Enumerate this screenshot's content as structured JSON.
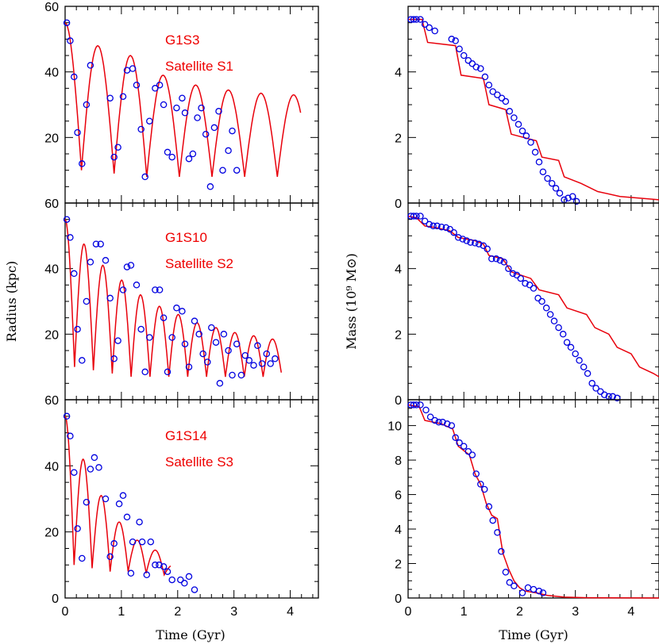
{
  "chart_data": [
    {
      "type": "line",
      "panel": "top-left",
      "annotation_line1": "G1S3",
      "annotation_line2": "Satellite S1",
      "xlim": [
        0,
        4.5
      ],
      "ylim": [
        0,
        60
      ],
      "x_ticks": [
        "0",
        "1",
        "2",
        "3",
        "4"
      ],
      "y_ticks": [
        "20",
        "40",
        "60"
      ],
      "model_curve": {
        "peaks": [
          55,
          48,
          45,
          39,
          36,
          34.5,
          33.5,
          33,
          33
        ],
        "troughs": [
          10,
          9,
          8,
          8,
          8,
          8,
          8,
          8,
          8
        ],
        "period": 0.58,
        "t_end": 4.2
      },
      "points": [
        [
          0.03,
          55
        ],
        [
          0.09,
          49.5
        ],
        [
          0.16,
          38.5
        ],
        [
          0.22,
          21.5
        ],
        [
          0.3,
          12
        ],
        [
          0.38,
          30
        ],
        [
          0.45,
          42
        ],
        [
          0.8,
          32
        ],
        [
          0.87,
          14
        ],
        [
          0.94,
          17
        ],
        [
          1.03,
          32.5
        ],
        [
          1.1,
          40.5
        ],
        [
          1.2,
          41
        ],
        [
          1.27,
          36
        ],
        [
          1.35,
          22.5
        ],
        [
          1.42,
          8
        ],
        [
          1.5,
          25
        ],
        [
          1.6,
          35
        ],
        [
          1.68,
          36
        ],
        [
          1.75,
          30
        ],
        [
          1.82,
          15.5
        ],
        [
          1.9,
          14
        ],
        [
          1.98,
          29
        ],
        [
          2.08,
          32
        ],
        [
          2.13,
          27.5
        ],
        [
          2.2,
          13.5
        ],
        [
          2.27,
          15
        ],
        [
          2.35,
          26
        ],
        [
          2.42,
          29
        ],
        [
          2.5,
          21
        ],
        [
          2.58,
          5
        ],
        [
          2.65,
          23
        ],
        [
          2.73,
          28
        ],
        [
          2.8,
          10
        ],
        [
          2.9,
          16
        ],
        [
          2.97,
          22
        ],
        [
          3.05,
          10
        ]
      ]
    },
    {
      "type": "line",
      "panel": "mid-left",
      "annotation_line1": "G1S10",
      "annotation_line2": "Satellite S2",
      "ylabel": "Radius (kpc)",
      "xlim": [
        0,
        4.5
      ],
      "ylim": [
        0,
        60
      ],
      "x_ticks": [
        "0",
        "1",
        "2",
        "3",
        "4"
      ],
      "y_ticks": [
        "20",
        "40",
        "60"
      ],
      "model_curve": {
        "peaks": [
          55,
          47.5,
          41,
          36.5,
          32,
          28.5,
          26,
          23.5,
          22,
          20.5,
          19.5,
          18.5
        ],
        "troughs": [
          10,
          9,
          8,
          7,
          7,
          7,
          7,
          7,
          7,
          7,
          7,
          7
        ],
        "period": 0.335,
        "t_end": 3.85
      },
      "points": [
        [
          0.03,
          55
        ],
        [
          0.09,
          49.5
        ],
        [
          0.16,
          38.5
        ],
        [
          0.22,
          21.5
        ],
        [
          0.3,
          12
        ],
        [
          0.38,
          30
        ],
        [
          0.45,
          42
        ],
        [
          0.55,
          47.5
        ],
        [
          0.63,
          47.5
        ],
        [
          0.72,
          42.5
        ],
        [
          0.8,
          31
        ],
        [
          0.87,
          12.5
        ],
        [
          0.94,
          18
        ],
        [
          1.03,
          33.5
        ],
        [
          1.1,
          40.5
        ],
        [
          1.17,
          41
        ],
        [
          1.27,
          35
        ],
        [
          1.35,
          21.5
        ],
        [
          1.42,
          8.5
        ],
        [
          1.5,
          19
        ],
        [
          1.6,
          33.5
        ],
        [
          1.68,
          33.5
        ],
        [
          1.75,
          25
        ],
        [
          1.82,
          8.5
        ],
        [
          1.9,
          19
        ],
        [
          1.98,
          28
        ],
        [
          2.08,
          27
        ],
        [
          2.13,
          17
        ],
        [
          2.2,
          10
        ],
        [
          2.3,
          24
        ],
        [
          2.38,
          20
        ],
        [
          2.45,
          14
        ],
        [
          2.53,
          11.5
        ],
        [
          2.6,
          22
        ],
        [
          2.68,
          17.5
        ],
        [
          2.75,
          5
        ],
        [
          2.82,
          20
        ],
        [
          2.9,
          15
        ],
        [
          2.97,
          7.5
        ],
        [
          3.05,
          17
        ],
        [
          3.13,
          7.5
        ],
        [
          3.2,
          13.5
        ],
        [
          3.27,
          12
        ],
        [
          3.35,
          10.5
        ],
        [
          3.42,
          16.5
        ],
        [
          3.5,
          11
        ],
        [
          3.58,
          14
        ],
        [
          3.65,
          11
        ],
        [
          3.73,
          12.5
        ]
      ]
    },
    {
      "type": "line",
      "panel": "bottom-left",
      "annotation_line1": "G1S14",
      "annotation_line2": "Satellite S3",
      "xlabel": "Time (Gyr)",
      "xlim": [
        0,
        4.5
      ],
      "ylim": [
        0,
        60
      ],
      "x_ticks": [
        "0",
        "1",
        "2",
        "3",
        "4"
      ],
      "y_ticks": [
        "0",
        "20",
        "40",
        "60"
      ],
      "model_curve": {
        "peaks": [
          55,
          42,
          31,
          23,
          17.5,
          14.5,
          10
        ],
        "troughs": [
          10,
          9,
          8,
          8,
          7.5,
          7,
          7
        ],
        "period": 0.32,
        "t_end": 1.88
      },
      "points": [
        [
          0.03,
          55
        ],
        [
          0.09,
          49
        ],
        [
          0.16,
          38
        ],
        [
          0.22,
          21
        ],
        [
          0.3,
          12
        ],
        [
          0.38,
          29
        ],
        [
          0.45,
          39
        ],
        [
          0.52,
          42.5
        ],
        [
          0.6,
          39.5
        ],
        [
          0.72,
          30
        ],
        [
          0.8,
          12.5
        ],
        [
          0.87,
          16.5
        ],
        [
          0.96,
          28.5
        ],
        [
          1.03,
          31
        ],
        [
          1.1,
          24.5
        ],
        [
          1.2,
          17
        ],
        [
          1.17,
          7.5
        ],
        [
          1.32,
          23
        ],
        [
          1.37,
          17
        ],
        [
          1.45,
          7
        ],
        [
          1.52,
          17
        ],
        [
          1.6,
          10
        ],
        [
          1.67,
          10
        ],
        [
          1.75,
          9.5
        ],
        [
          1.82,
          8
        ],
        [
          1.9,
          5.5
        ],
        [
          2.05,
          5.5
        ],
        [
          2.12,
          4.5
        ],
        [
          2.2,
          6.5
        ],
        [
          2.3,
          2.5
        ]
      ]
    },
    {
      "type": "line",
      "panel": "top-right",
      "xlim": [
        0,
        4.5
      ],
      "ylim": [
        0,
        6
      ],
      "x_ticks": [
        "0",
        "1",
        "2",
        "3",
        "4"
      ],
      "y_ticks": [
        "0",
        "2",
        "4"
      ],
      "model_curve": [
        [
          0,
          5.6
        ],
        [
          0.25,
          5.6
        ],
        [
          0.35,
          4.9
        ],
        [
          0.85,
          4.8
        ],
        [
          0.95,
          3.9
        ],
        [
          1.35,
          3.8
        ],
        [
          1.45,
          3.0
        ],
        [
          1.75,
          2.85
        ],
        [
          1.85,
          2.1
        ],
        [
          2.3,
          1.9
        ],
        [
          2.4,
          1.4
        ],
        [
          2.7,
          1.3
        ],
        [
          2.8,
          0.8
        ],
        [
          3.1,
          0.6
        ],
        [
          3.4,
          0.35
        ],
        [
          3.8,
          0.2
        ],
        [
          4.5,
          0.1
        ]
      ],
      "points": [
        [
          0.05,
          5.6
        ],
        [
          0.1,
          5.6
        ],
        [
          0.15,
          5.6
        ],
        [
          0.22,
          5.6
        ],
        [
          0.3,
          5.45
        ],
        [
          0.38,
          5.35
        ],
        [
          0.48,
          5.25
        ],
        [
          0.78,
          5.0
        ],
        [
          0.85,
          4.95
        ],
        [
          0.92,
          4.7
        ],
        [
          1.0,
          4.5
        ],
        [
          1.08,
          4.35
        ],
        [
          1.15,
          4.25
        ],
        [
          1.22,
          4.15
        ],
        [
          1.3,
          4.1
        ],
        [
          1.38,
          3.85
        ],
        [
          1.45,
          3.6
        ],
        [
          1.52,
          3.4
        ],
        [
          1.6,
          3.3
        ],
        [
          1.68,
          3.2
        ],
        [
          1.75,
          3.1
        ],
        [
          1.82,
          2.8
        ],
        [
          1.9,
          2.6
        ],
        [
          1.98,
          2.4
        ],
        [
          2.05,
          2.2
        ],
        [
          2.12,
          2.05
        ],
        [
          2.2,
          1.85
        ],
        [
          2.28,
          1.55
        ],
        [
          2.35,
          1.25
        ],
        [
          2.42,
          0.95
        ],
        [
          2.5,
          0.75
        ],
        [
          2.58,
          0.6
        ],
        [
          2.65,
          0.45
        ],
        [
          2.72,
          0.3
        ],
        [
          2.8,
          0.1
        ],
        [
          2.87,
          0.15
        ],
        [
          2.95,
          0.2
        ],
        [
          3.02,
          0.05
        ]
      ]
    },
    {
      "type": "line",
      "panel": "mid-right",
      "ylabel": "Mass (10⁹ M⊙)",
      "xlim": [
        0,
        4.5
      ],
      "ylim": [
        0,
        6
      ],
      "x_ticks": [
        "0",
        "1",
        "2",
        "3",
        "4"
      ],
      "y_ticks": [
        "0",
        "2",
        "4"
      ],
      "model_curve": [
        [
          0,
          5.6
        ],
        [
          0.15,
          5.55
        ],
        [
          0.3,
          5.3
        ],
        [
          0.5,
          5.25
        ],
        [
          0.75,
          5.15
        ],
        [
          0.9,
          4.95
        ],
        [
          1.2,
          4.85
        ],
        [
          1.35,
          4.75
        ],
        [
          1.45,
          4.4
        ],
        [
          1.7,
          4.3
        ],
        [
          1.85,
          3.9
        ],
        [
          2.2,
          3.7
        ],
        [
          2.35,
          3.35
        ],
        [
          2.7,
          3.2
        ],
        [
          2.85,
          2.8
        ],
        [
          3.2,
          2.6
        ],
        [
          3.35,
          2.2
        ],
        [
          3.6,
          2.0
        ],
        [
          3.75,
          1.6
        ],
        [
          4.0,
          1.4
        ],
        [
          4.15,
          1.0
        ],
        [
          4.4,
          0.8
        ],
        [
          4.5,
          0.7
        ]
      ],
      "points": [
        [
          0.05,
          5.6
        ],
        [
          0.1,
          5.6
        ],
        [
          0.15,
          5.6
        ],
        [
          0.22,
          5.6
        ],
        [
          0.3,
          5.45
        ],
        [
          0.38,
          5.35
        ],
        [
          0.45,
          5.3
        ],
        [
          0.52,
          5.3
        ],
        [
          0.6,
          5.27
        ],
        [
          0.68,
          5.25
        ],
        [
          0.75,
          5.2
        ],
        [
          0.82,
          5.1
        ],
        [
          0.9,
          4.95
        ],
        [
          0.98,
          4.9
        ],
        [
          1.05,
          4.85
        ],
        [
          1.12,
          4.8
        ],
        [
          1.2,
          4.78
        ],
        [
          1.27,
          4.75
        ],
        [
          1.35,
          4.7
        ],
        [
          1.42,
          4.6
        ],
        [
          1.5,
          4.3
        ],
        [
          1.58,
          4.3
        ],
        [
          1.65,
          4.25
        ],
        [
          1.72,
          4.2
        ],
        [
          1.8,
          4.0
        ],
        [
          1.88,
          3.85
        ],
        [
          1.95,
          3.8
        ],
        [
          2.02,
          3.7
        ],
        [
          2.1,
          3.55
        ],
        [
          2.18,
          3.5
        ],
        [
          2.25,
          3.4
        ],
        [
          2.33,
          3.1
        ],
        [
          2.4,
          3.0
        ],
        [
          2.48,
          2.8
        ],
        [
          2.55,
          2.6
        ],
        [
          2.62,
          2.4
        ],
        [
          2.7,
          2.2
        ],
        [
          2.78,
          2.0
        ],
        [
          2.85,
          1.75
        ],
        [
          2.92,
          1.6
        ],
        [
          3.0,
          1.4
        ],
        [
          3.07,
          1.2
        ],
        [
          3.15,
          1.0
        ],
        [
          3.22,
          0.8
        ],
        [
          3.3,
          0.5
        ],
        [
          3.37,
          0.35
        ],
        [
          3.45,
          0.25
        ],
        [
          3.52,
          0.15
        ],
        [
          3.6,
          0.1
        ],
        [
          3.67,
          0.1
        ],
        [
          3.75,
          0.05
        ]
      ]
    },
    {
      "type": "line",
      "panel": "bottom-right",
      "xlabel": "Time (Gyr)",
      "xlim": [
        0,
        4.5
      ],
      "ylim": [
        0,
        11.5
      ],
      "x_ticks": [
        "0",
        "1",
        "2",
        "3",
        "4"
      ],
      "y_ticks": [
        "0",
        "2",
        "4",
        "6",
        "8",
        "10"
      ],
      "model_curve": [
        [
          0,
          11.2
        ],
        [
          0.2,
          11.1
        ],
        [
          0.3,
          10.3
        ],
        [
          0.6,
          10.1
        ],
        [
          0.8,
          9.8
        ],
        [
          0.9,
          8.8
        ],
        [
          1.1,
          8.3
        ],
        [
          1.2,
          7.2
        ],
        [
          1.3,
          6.6
        ],
        [
          1.4,
          5.5
        ],
        [
          1.5,
          4.8
        ],
        [
          1.6,
          4.6
        ],
        [
          1.7,
          2.6
        ],
        [
          1.8,
          1.7
        ],
        [
          1.9,
          1.0
        ],
        [
          2.0,
          0.6
        ],
        [
          2.1,
          0.4
        ],
        [
          2.3,
          0.3
        ],
        [
          2.5,
          0.15
        ],
        [
          2.8,
          0.05
        ],
        [
          3.2,
          0.02
        ],
        [
          4.5,
          0.0
        ]
      ],
      "points": [
        [
          0.05,
          11.2
        ],
        [
          0.1,
          11.2
        ],
        [
          0.15,
          11.2
        ],
        [
          0.22,
          11.2
        ],
        [
          0.32,
          10.9
        ],
        [
          0.4,
          10.5
        ],
        [
          0.48,
          10.3
        ],
        [
          0.55,
          10.2
        ],
        [
          0.62,
          10.2
        ],
        [
          0.7,
          10.1
        ],
        [
          0.78,
          10.0
        ],
        [
          0.85,
          9.3
        ],
        [
          0.92,
          9.0
        ],
        [
          1.0,
          8.8
        ],
        [
          1.08,
          8.5
        ],
        [
          1.15,
          8.3
        ],
        [
          1.22,
          7.2
        ],
        [
          1.3,
          6.6
        ],
        [
          1.37,
          6.3
        ],
        [
          1.45,
          5.3
        ],
        [
          1.52,
          4.5
        ],
        [
          1.6,
          3.8
        ],
        [
          1.67,
          2.7
        ],
        [
          1.75,
          1.5
        ],
        [
          1.82,
          0.9
        ],
        [
          1.9,
          0.7
        ],
        [
          2.05,
          0.3
        ],
        [
          2.15,
          0.6
        ],
        [
          2.25,
          0.5
        ],
        [
          2.35,
          0.4
        ],
        [
          2.42,
          0.3
        ]
      ]
    }
  ],
  "colors": {
    "model": "#e8000b",
    "points": "#0000e0",
    "axes": "#000000",
    "annotation": "#e8000b"
  }
}
